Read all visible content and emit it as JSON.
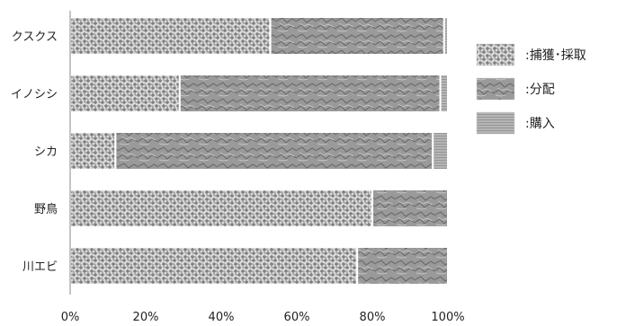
{
  "chart_data": {
    "type": "bar",
    "orientation": "horizontal",
    "stacked": true,
    "percent": true,
    "categories": [
      "クスクス",
      "イノシシ",
      "シカ",
      "野鳥",
      "川エビ"
    ],
    "series": [
      {
        "name": "捕獲・採取",
        "values": [
          53,
          29,
          12,
          80,
          76
        ],
        "pattern": "weave"
      },
      {
        "name": "分配",
        "values": [
          46,
          69,
          84,
          20,
          24
        ],
        "pattern": "crumpled"
      },
      {
        "name": "購入",
        "values": [
          1,
          2,
          4,
          0,
          0
        ],
        "pattern": "brushed"
      }
    ],
    "xlim": [
      0,
      100
    ],
    "xticks": [
      "0%",
      "20%",
      "40%",
      "60%",
      "80%",
      "100%"
    ],
    "legend": {
      "placement": "right",
      "labels": [
        ":捕獲･採取",
        ":分配",
        ":購入"
      ]
    },
    "grid": false,
    "colors": {
      "weave_base": "#d9d9d9",
      "weave_line": "#6f6f6f",
      "crumpled_base": "#9a9a9a",
      "crumpled_dark": "#6a6a6a",
      "crumpled_light": "#c4c4c4",
      "brushed_base": "#b5b5b5",
      "brushed_line": "#8c8c8c",
      "axis": "#888888"
    }
  }
}
